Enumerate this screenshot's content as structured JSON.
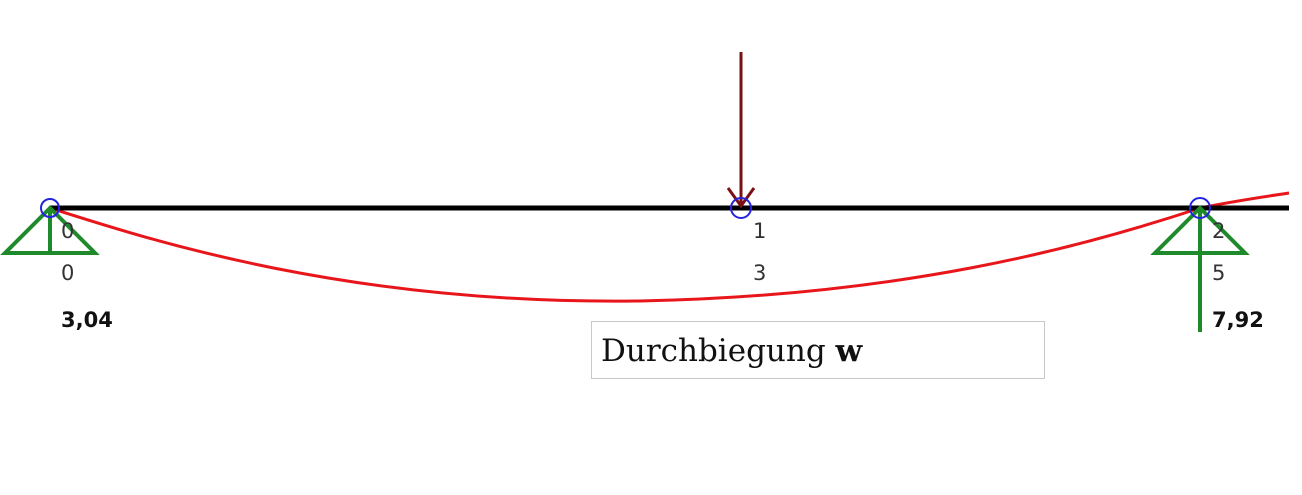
{
  "diagram": {
    "nodes": [
      {
        "id": "0",
        "node_label": "0",
        "x_label": "0"
      },
      {
        "id": "1",
        "node_label": "1",
        "x_label": "3"
      },
      {
        "id": "2",
        "node_label": "2",
        "x_label": "5"
      }
    ],
    "reactions": {
      "left": "3,04",
      "right": "7,92"
    },
    "caption": {
      "text": "Durchbiegung ",
      "symbol": "w"
    },
    "colors": {
      "beam": "#000000",
      "deflection": "#e8161b",
      "support": "#1f8a2c",
      "load": "#7a0f14",
      "node": "#2424e0"
    }
  }
}
